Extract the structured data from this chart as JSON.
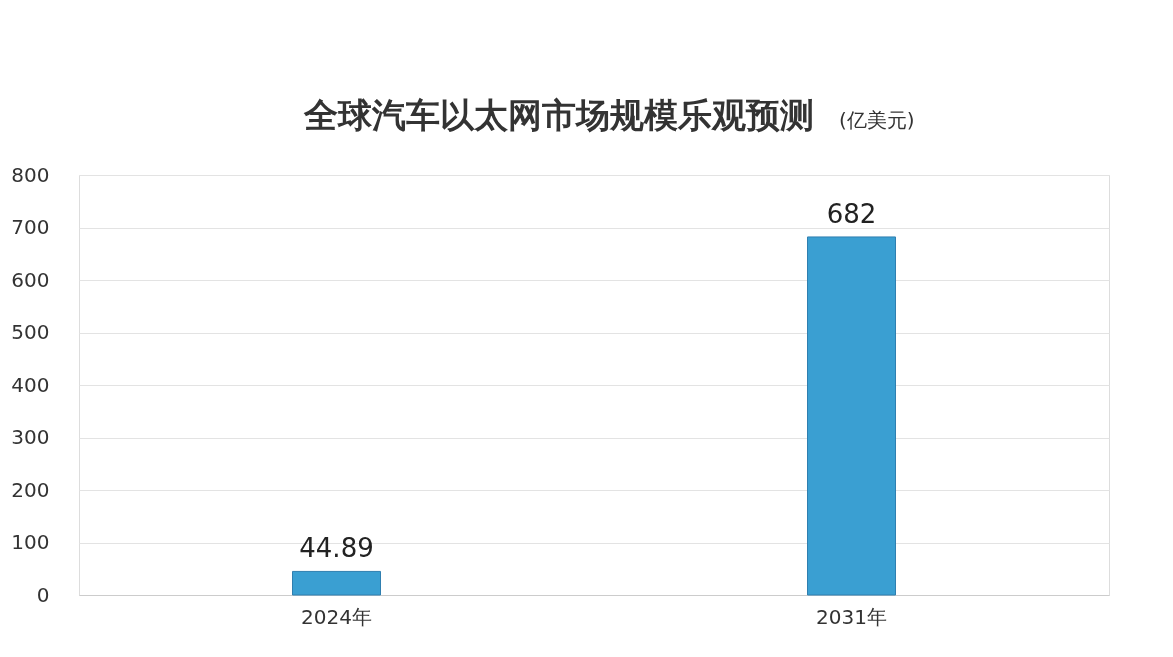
{
  "chart_data": {
    "type": "bar",
    "title": "全球汽车以太网市场规模乐观预测",
    "subtitle": "(亿美元)",
    "categories": [
      "2024年",
      "2031年"
    ],
    "values": [
      44.89,
      682
    ],
    "color": "#3a9fd2",
    "ylim": [
      0,
      800
    ],
    "yticks": [
      0,
      100,
      200,
      300,
      400,
      500,
      600,
      700,
      800
    ],
    "grid": "y",
    "data_labels": true
  }
}
